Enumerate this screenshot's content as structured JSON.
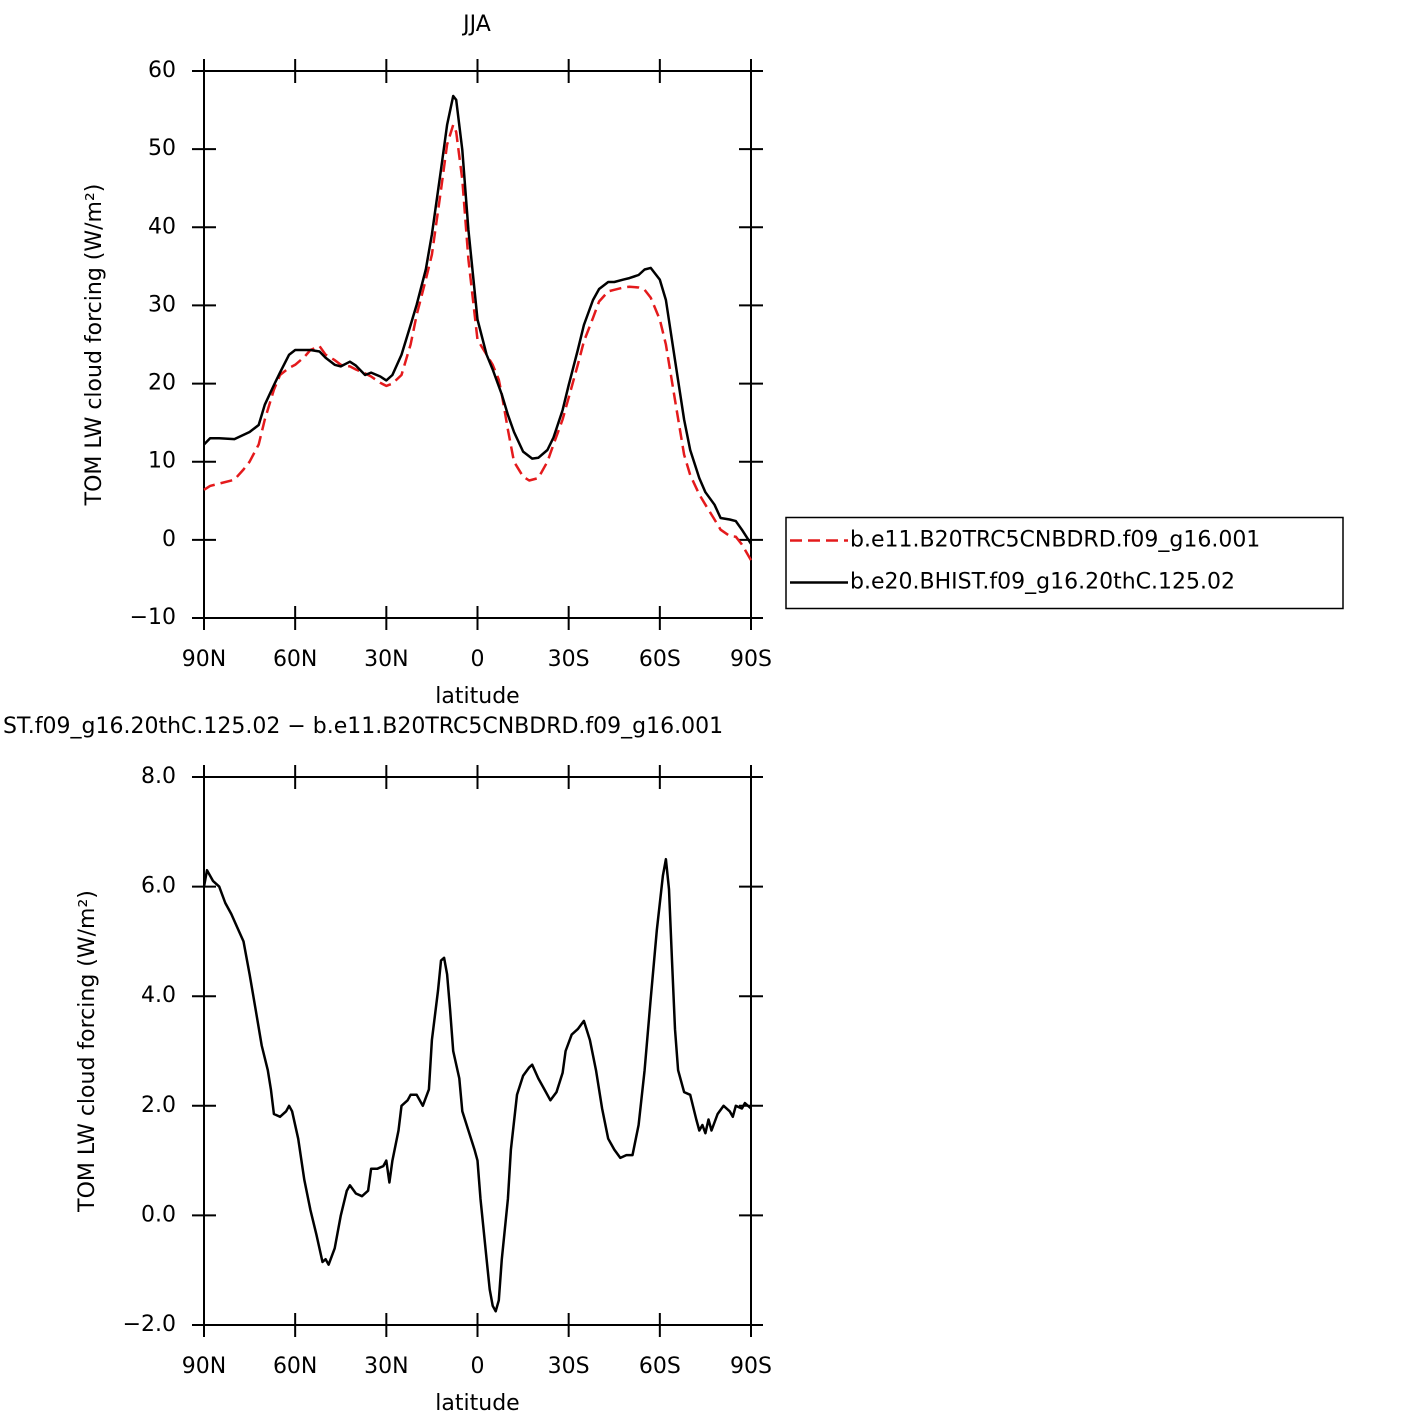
{
  "chart_data": [
    {
      "type": "line",
      "title": "JJA",
      "x_label": "latitude",
      "y_label": "TOM LW cloud forcing (W/m²)",
      "xlim": [
        90,
        -90
      ],
      "xticks": [
        {
          "value": 90,
          "label": "90N"
        },
        {
          "value": 60,
          "label": "60N"
        },
        {
          "value": 30,
          "label": "30N"
        },
        0,
        {
          "value": -30,
          "label": "30S"
        },
        {
          "value": -60,
          "label": "60S"
        },
        {
          "value": -90,
          "label": "90S"
        }
      ],
      "ylim": [
        -10,
        60
      ],
      "yticks": [
        {
          "value": -10,
          "label": "−10"
        },
        0,
        10,
        20,
        30,
        40,
        50,
        60
      ],
      "legend": "right",
      "series": [
        {
          "name": "b.e11.B20TRC5CNBDRD.f09_g16.001",
          "color": "#e41a1c",
          "linestyle": "dashed",
          "x": [
            90,
            88,
            85,
            80,
            77,
            75,
            72,
            70,
            67,
            65,
            62,
            60,
            57,
            55,
            52,
            50,
            47,
            45,
            42,
            40,
            37,
            35,
            32,
            30,
            28,
            25,
            22,
            20,
            17,
            15,
            12,
            10,
            8,
            7,
            5,
            3,
            0,
            -3,
            -5,
            -7,
            -8,
            -10,
            -12,
            -15,
            -17,
            -20,
            -23,
            -25,
            -28,
            -30,
            -33,
            -35,
            -38,
            -40,
            -43,
            -45,
            -48,
            -50,
            -53,
            -55,
            -57,
            -60,
            -62,
            -65,
            -68,
            -70,
            -73,
            -75,
            -78,
            -80,
            -83,
            -85,
            -87,
            -90
          ],
          "values": [
            6.4,
            6.9,
            7.2,
            7.7,
            9.0,
            10.0,
            12.2,
            15.4,
            19.2,
            21.1,
            22.0,
            22.4,
            23.4,
            24.3,
            24.8,
            23.7,
            23.0,
            22.4,
            22.2,
            21.8,
            21.3,
            20.9,
            20.1,
            19.7,
            20.0,
            21.1,
            25.0,
            28.8,
            33.3,
            36.5,
            44.8,
            50.6,
            53.1,
            52.2,
            46.1,
            35.9,
            25.6,
            23.7,
            22.4,
            20.5,
            18.6,
            14.1,
            10.0,
            8.1,
            7.6,
            7.9,
            10.0,
            12.2,
            15.4,
            18.2,
            22.4,
            25.4,
            28.4,
            30.5,
            31.8,
            32.0,
            32.3,
            32.4,
            32.3,
            32.0,
            31.0,
            28.2,
            25.0,
            17.9,
            10.9,
            8.3,
            5.8,
            4.5,
            2.6,
            1.3,
            0.5,
            0.4,
            -0.6,
            -2.6
          ]
        },
        {
          "name": "b.e20.BHIST.f09_g16.20thC.125.02",
          "color": "#000000",
          "linestyle": "solid",
          "x": [
            90,
            88,
            85,
            80,
            75,
            72,
            70,
            67,
            65,
            62,
            60,
            57,
            55,
            52,
            50,
            47,
            45,
            42,
            40,
            37,
            35,
            32,
            30,
            28,
            25,
            22,
            20,
            17,
            15,
            12,
            10,
            8,
            7,
            5,
            3,
            0,
            -3,
            -5,
            -8,
            -10,
            -12,
            -15,
            -18,
            -20,
            -23,
            -25,
            -28,
            -30,
            -33,
            -35,
            -38,
            -40,
            -43,
            -45,
            -48,
            -50,
            -53,
            -55,
            -57,
            -60,
            -62,
            -65,
            -68,
            -70,
            -73,
            -75,
            -78,
            -80,
            -83,
            -85,
            -87,
            -90
          ],
          "values": [
            12.2,
            13.0,
            13.0,
            12.9,
            13.8,
            14.7,
            17.3,
            19.8,
            21.4,
            23.7,
            24.3,
            24.3,
            24.3,
            24.1,
            23.3,
            22.4,
            22.2,
            22.8,
            22.3,
            21.1,
            21.4,
            20.9,
            20.4,
            21.1,
            23.7,
            27.5,
            30.1,
            34.6,
            39.1,
            47.4,
            53.1,
            56.8,
            56.3,
            49.9,
            39.7,
            28.2,
            23.7,
            21.8,
            18.6,
            16.0,
            13.8,
            11.3,
            10.4,
            10.5,
            11.5,
            13.1,
            16.6,
            19.8,
            24.3,
            27.5,
            30.7,
            32.1,
            33.0,
            33.0,
            33.3,
            33.5,
            33.9,
            34.6,
            34.8,
            33.3,
            30.7,
            23.0,
            15.4,
            11.5,
            7.9,
            6.1,
            4.5,
            2.8,
            2.6,
            2.4,
            1.3,
            -0.5
          ]
        }
      ]
    },
    {
      "type": "line",
      "title": "ST.f09_g16.20thC.125.02 − b.e11.B20TRC5CNBDRD.f09_g16.001",
      "x_label": "latitude",
      "y_label": "TOM LW cloud forcing (W/m²)",
      "xlim": [
        90,
        -90
      ],
      "xticks": [
        {
          "value": 90,
          "label": "90N"
        },
        {
          "value": 60,
          "label": "60N"
        },
        {
          "value": 30,
          "label": "30N"
        },
        0,
        {
          "value": -30,
          "label": "30S"
        },
        {
          "value": -60,
          "label": "60S"
        },
        {
          "value": -90,
          "label": "90S"
        }
      ],
      "ylim": [
        -2,
        8
      ],
      "yticks": [
        {
          "value": -2,
          "label": "−2.0"
        },
        {
          "value": 0,
          "label": "0.0"
        },
        {
          "value": 2,
          "label": "2.0"
        },
        {
          "value": 4,
          "label": "4.0"
        },
        {
          "value": 6,
          "label": "6.0"
        },
        {
          "value": 8,
          "label": "8.0"
        }
      ],
      "series": [
        {
          "color": "#000000",
          "linestyle": "solid",
          "x": [
            90,
            89,
            87,
            85,
            83,
            81,
            79,
            77,
            75,
            73,
            71,
            69,
            68,
            67,
            65,
            63,
            62,
            61,
            59,
            57,
            55,
            53,
            51,
            50,
            49,
            47,
            45,
            43,
            42,
            40,
            38,
            36,
            35,
            33,
            31,
            30,
            29,
            28,
            26,
            25,
            23,
            22,
            20,
            18,
            16,
            15,
            13,
            12,
            11,
            10,
            9,
            8,
            6,
            5,
            3,
            1,
            0,
            -1,
            -3,
            -4,
            -5,
            -6,
            -7,
            -8,
            -10,
            -11,
            -13,
            -15,
            -17,
            -18,
            -20,
            -22,
            -24,
            -26,
            -28,
            -29,
            -31,
            -33,
            -35,
            -37,
            -39,
            -41,
            -43,
            -45,
            -47,
            -49,
            -51,
            -53,
            -55,
            -57,
            -59,
            -61,
            -62,
            -63,
            -64,
            -65,
            -66,
            -68,
            -70,
            -72,
            -73,
            -74,
            -75,
            -76,
            -77,
            -79,
            -81,
            -83,
            -84,
            -85,
            -87,
            -88,
            -90
          ],
          "values": [
            6.0,
            6.3,
            6.1,
            6.0,
            5.7,
            5.5,
            5.25,
            5.0,
            4.4,
            3.75,
            3.1,
            2.65,
            2.3,
            1.85,
            1.8,
            1.9,
            2.0,
            1.9,
            1.4,
            0.65,
            0.1,
            -0.35,
            -0.85,
            -0.8,
            -0.9,
            -0.6,
            0.0,
            0.45,
            0.55,
            0.4,
            0.35,
            0.45,
            0.85,
            0.85,
            0.9,
            1.0,
            0.6,
            1.0,
            1.55,
            2.0,
            2.1,
            2.2,
            2.2,
            2.0,
            2.3,
            3.2,
            4.1,
            4.65,
            4.7,
            4.4,
            3.75,
            3.0,
            2.5,
            1.9,
            1.55,
            1.2,
            1.0,
            0.3,
            -0.8,
            -1.35,
            -1.65,
            -1.75,
            -1.55,
            -0.8,
            0.3,
            1.2,
            2.2,
            2.55,
            2.7,
            2.75,
            2.5,
            2.3,
            2.1,
            2.25,
            2.6,
            3.0,
            3.3,
            3.4,
            3.55,
            3.2,
            2.65,
            1.95,
            1.4,
            1.2,
            1.05,
            1.1,
            1.1,
            1.65,
            2.65,
            3.95,
            5.2,
            6.2,
            6.5,
            5.95,
            4.65,
            3.4,
            2.65,
            2.25,
            2.2,
            1.75,
            1.55,
            1.65,
            1.5,
            1.75,
            1.55,
            1.85,
            2.0,
            1.9,
            1.8,
            2.0,
            1.95,
            2.05,
            1.95
          ]
        }
      ]
    }
  ]
}
